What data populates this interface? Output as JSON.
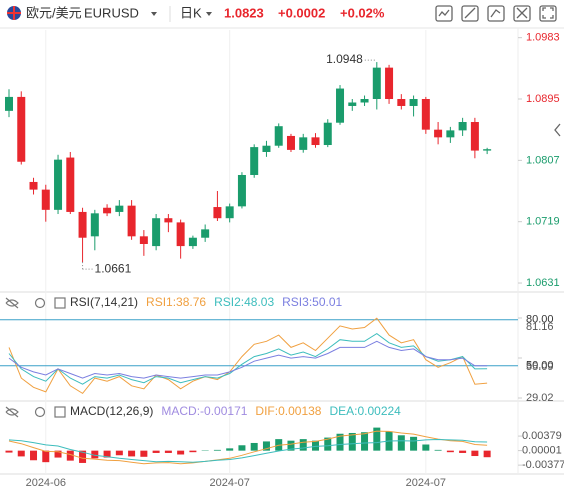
{
  "header": {
    "symbol": "欧元/美元",
    "code": "EURUSD",
    "period": "日K",
    "change": "+0.0002",
    "change_pct": "+0.02%"
  },
  "chart_data": [
    {
      "type": "candlestick",
      "categories": [
        null,
        null,
        null,
        "2024-06",
        null,
        null,
        null,
        null,
        null,
        null,
        null,
        null,
        null,
        null,
        null,
        null,
        null,
        null,
        "2024-07",
        null,
        null,
        null,
        null,
        null,
        null,
        null,
        null,
        null,
        null,
        null,
        null,
        null,
        null,
        null,
        "2024-07",
        null,
        null,
        null,
        null,
        null
      ],
      "open": [
        1.0878,
        1.0898,
        1.0776,
        1.0765,
        1.0736,
        1.0811,
        1.0733,
        1.0698,
        1.0739,
        1.0733,
        1.0742,
        1.0698,
        1.0684,
        1.0724,
        1.0718,
        1.0684,
        1.0696,
        1.074,
        1.0724,
        1.0741,
        1.0786,
        1.0819,
        1.0828,
        1.0842,
        1.0822,
        1.084,
        1.0829,
        1.0861,
        1.0885,
        1.089,
        1.0895,
        1.094,
        1.0895,
        1.0885,
        1.0895,
        1.0851,
        1.084,
        1.085,
        1.0862,
        1.0821
      ],
      "high": [
        1.0909,
        1.0906,
        1.0782,
        1.0772,
        1.0815,
        1.0819,
        1.0739,
        1.0736,
        1.0744,
        1.075,
        1.075,
        1.0707,
        1.073,
        1.073,
        1.0722,
        1.0699,
        1.0715,
        1.0763,
        1.0745,
        1.079,
        1.083,
        1.0835,
        1.086,
        1.0845,
        1.0845,
        1.0846,
        1.0866,
        1.0915,
        1.0895,
        1.09,
        1.0948,
        1.0944,
        1.0902,
        1.09,
        1.0898,
        1.0862,
        1.0855,
        1.0868,
        1.0868,
        1.0825
      ],
      "low": [
        1.0869,
        1.0801,
        1.0758,
        1.0719,
        1.073,
        1.073,
        1.0661,
        1.0678,
        1.0727,
        1.0727,
        1.0693,
        1.067,
        1.0678,
        1.0704,
        1.0666,
        1.068,
        1.069,
        1.072,
        1.0718,
        1.0738,
        1.0782,
        1.0812,
        1.0825,
        1.0819,
        1.0818,
        1.0825,
        1.0826,
        1.0858,
        1.0878,
        1.0885,
        1.088,
        1.0888,
        1.088,
        1.087,
        1.0845,
        1.083,
        1.0832,
        1.0842,
        1.081,
        1.0816
      ],
      "close": [
        1.0898,
        1.0805,
        1.0765,
        1.0736,
        1.0808,
        1.0733,
        1.0696,
        1.0731,
        1.0731,
        1.0742,
        1.0698,
        1.0687,
        1.0724,
        1.0718,
        1.0684,
        1.0696,
        1.0708,
        1.0724,
        1.0741,
        1.0786,
        1.0826,
        1.0828,
        1.0856,
        1.0822,
        1.084,
        1.0829,
        1.0861,
        1.091,
        1.089,
        1.0895,
        1.094,
        1.0895,
        1.0885,
        1.0895,
        1.0851,
        1.084,
        1.085,
        1.0862,
        1.0821,
        1.0823
      ],
      "up_color": "#1a9c6c",
      "down_color": "#e8262d",
      "ylim": [
        1.0621,
        1.0994
      ],
      "yticks": [
        1.0983,
        1.0895,
        1.0807,
        1.0719,
        1.0631
      ]
    },
    {
      "type": "line",
      "title": "RSI(7,14,21)",
      "series": [
        {
          "name": "RSI1:38.76",
          "color": "#f0a040",
          "values": [
            62,
            42,
            36,
            33,
            48,
            37,
            32,
            42,
            40,
            43,
            37,
            35,
            44,
            41,
            35,
            40,
            43,
            41,
            46,
            56,
            64,
            66,
            70,
            62,
            65,
            60,
            68,
            76,
            74,
            75,
            81,
            70,
            65,
            67,
            54,
            49,
            52,
            56,
            38,
            38.76
          ]
        },
        {
          "name": "RSI2:48.03",
          "color": "#3dbdbd",
          "values": [
            58,
            48,
            43,
            40,
            48,
            42,
            38,
            43,
            42,
            44,
            41,
            39,
            43,
            42,
            39,
            41,
            43,
            42,
            45,
            51,
            56,
            58,
            61,
            57,
            59,
            56,
            61,
            67,
            66,
            66,
            71,
            65,
            62,
            63,
            56,
            53,
            54,
            56,
            48,
            48.03
          ]
        },
        {
          "name": "RSI3:50.01",
          "color": "#7b7fe0",
          "values": [
            55,
            49,
            46,
            44,
            48,
            45,
            42,
            45,
            44,
            45,
            43,
            42,
            44,
            43,
            42,
            43,
            44,
            44,
            46,
            49,
            53,
            55,
            57,
            55,
            56,
            55,
            58,
            62,
            62,
            62,
            66,
            62,
            60,
            61,
            56,
            54,
            54,
            55,
            50,
            50.01
          ]
        }
      ],
      "ylim": [
        29.02,
        81.16
      ],
      "yticks": [
        81.16,
        55.09,
        29.02
      ],
      "levels": [
        {
          "value": 80,
          "label": "80.00"
        },
        {
          "value": 50,
          "label": "50.00"
        }
      ],
      "level_color": "#3aa0c8"
    },
    {
      "type": "macd",
      "title": "MACD(12,26,9)",
      "series": [
        {
          "name": "MACD:-0.00171",
          "color": "#a08ce0",
          "values": [
            -0.0005,
            -0.0015,
            -0.0025,
            -0.003,
            -0.0018,
            -0.0026,
            -0.0032,
            -0.002,
            -0.0018,
            -0.0012,
            -0.0015,
            -0.0016,
            -0.0006,
            -0.0006,
            -0.001,
            -0.0004,
            0.0001,
            0.0002,
            0.0006,
            0.0014,
            0.002,
            0.0024,
            0.003,
            0.0026,
            0.003,
            0.0026,
            0.0034,
            0.0044,
            0.0046,
            0.0048,
            0.006,
            0.005,
            0.004,
            0.0036,
            0.0016,
            0.0002,
            -0.0004,
            -0.0006,
            -0.0014,
            -0.00171
          ]
        },
        {
          "name": "DIF:0.00138",
          "color": "#f0a040",
          "values": [
            0.0025,
            0.0018,
            0.0008,
            -0.0002,
            -0.0003,
            -0.001,
            -0.002,
            -0.0022,
            -0.0025,
            -0.0026,
            -0.003,
            -0.0034,
            -0.0032,
            -0.0031,
            -0.0034,
            -0.0032,
            -0.0028,
            -0.0024,
            -0.002,
            -0.0012,
            -0.0003,
            0.0005,
            0.0014,
            0.0017,
            0.0022,
            0.0024,
            0.003,
            0.0038,
            0.0041,
            0.0044,
            0.0051,
            0.005,
            0.0046,
            0.0043,
            0.0036,
            0.003,
            0.0026,
            0.0024,
            0.0016,
            0.00138
          ]
        },
        {
          "name": "DEA:0.00224",
          "color": "#3dbdbd",
          "values": [
            0.0028,
            0.0026,
            0.0021,
            0.0015,
            0.0012,
            0.0003,
            -0.0004,
            -0.0012,
            -0.0016,
            -0.002,
            -0.0023,
            -0.0026,
            -0.0029,
            -0.0028,
            -0.0029,
            -0.003,
            -0.0028,
            -0.0025,
            -0.0023,
            -0.0019,
            -0.0013,
            -0.0007,
            -0.0001,
            0.0004,
            0.0007,
            0.0011,
            0.0013,
            0.0016,
            0.0018,
            0.002,
            0.0021,
            0.0025,
            0.0026,
            0.0025,
            0.0028,
            0.0029,
            0.0028,
            0.0027,
            0.0023,
            0.00224
          ]
        }
      ],
      "up_color": "#1a9c6c",
      "down_color": "#e8262d",
      "ylim": [
        -0.0066,
        0.0085
      ],
      "yticks": [
        0.00379,
        1e-05,
        -0.00377
      ]
    }
  ]
}
